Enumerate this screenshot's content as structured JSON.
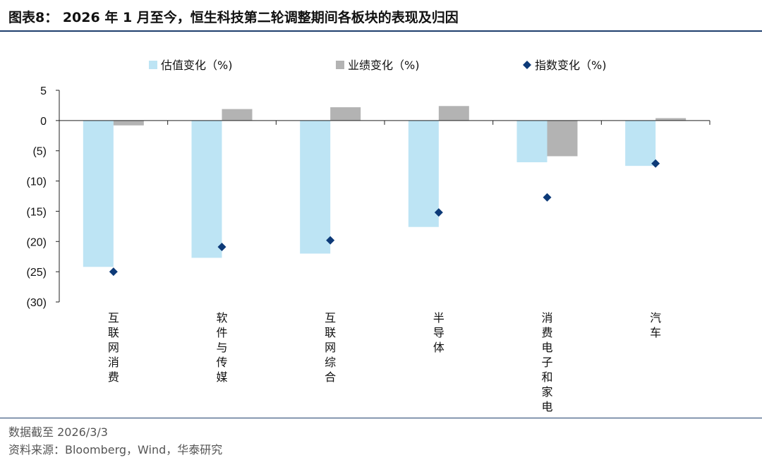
{
  "header": {
    "title": "图表8：  2026 年 1 月至今，恒生科技第二轮调整期间各板块的表现及归因"
  },
  "footer": {
    "note": "数据截至 2026/3/3",
    "source": "资料来源：Bloomberg，Wind，华泰研究"
  },
  "colors": {
    "valuation": "#bde4f4",
    "earnings": "#b3b3b3",
    "index": "#0d3a78",
    "rule": "#1f3f6e"
  },
  "chart_data": {
    "type": "bar",
    "title": "",
    "xlabel": "",
    "ylabel": "",
    "ylim": [
      -30,
      5
    ],
    "yticks": [
      5,
      0,
      -5,
      -10,
      -15,
      -20,
      -25,
      -30
    ],
    "ytick_labels": [
      "5",
      "0",
      "(5)",
      "(10)",
      "(15)",
      "(20)",
      "(25)",
      "(30)"
    ],
    "legend_position": "top",
    "grid": false,
    "categories": [
      "互联网消费",
      "软件与传媒",
      "互联网综合",
      "半导体",
      "消费电子和家电",
      "汽车"
    ],
    "series": [
      {
        "name": "估值变化（%)",
        "kind": "bar",
        "values": [
          -24.2,
          -22.7,
          -22.0,
          -17.6,
          -6.9,
          -7.5
        ]
      },
      {
        "name": "业绩变化（%)",
        "kind": "bar",
        "values": [
          -0.8,
          1.9,
          2.2,
          2.4,
          -5.9,
          0.4
        ]
      },
      {
        "name": "指数变化（%)",
        "kind": "marker",
        "values": [
          -25.0,
          -20.9,
          -19.8,
          -15.2,
          -12.7,
          -7.1
        ]
      }
    ]
  }
}
